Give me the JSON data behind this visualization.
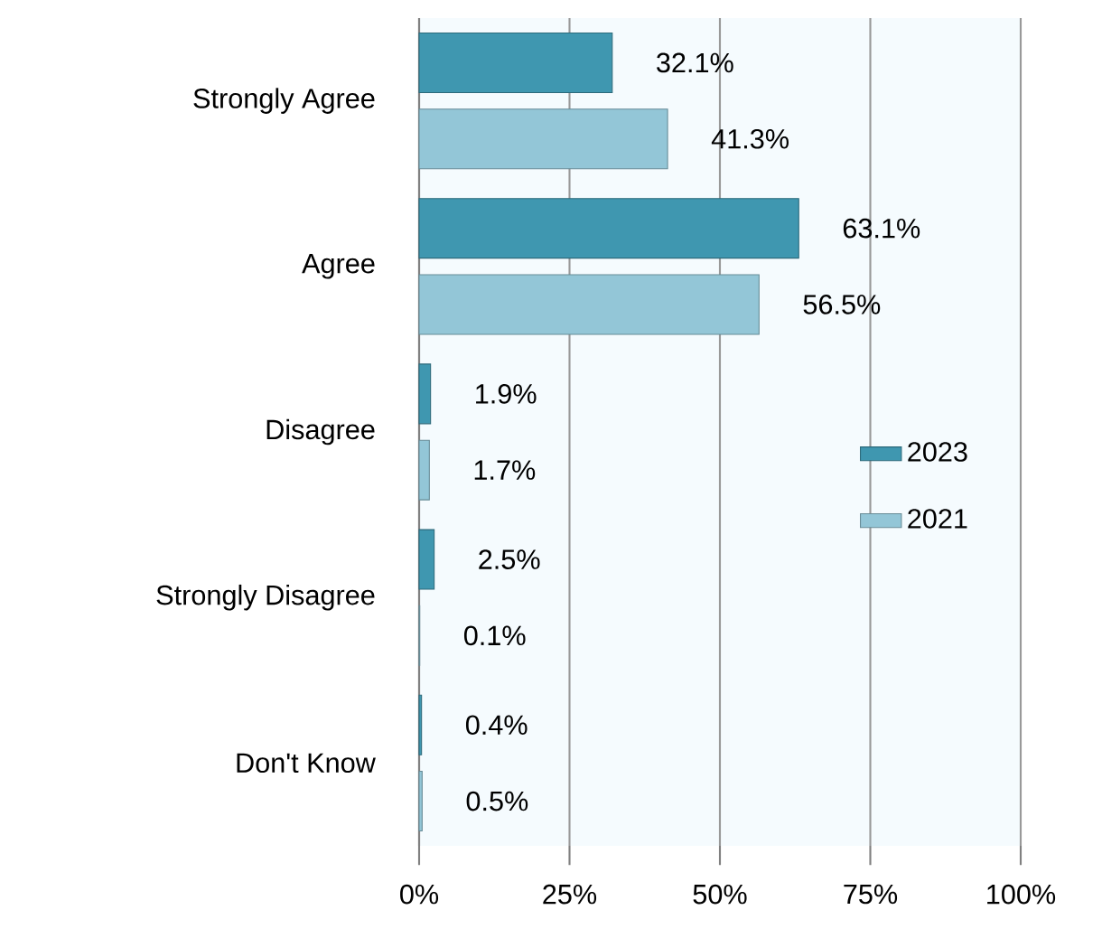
{
  "chart_data": {
    "type": "bar",
    "orientation": "horizontal",
    "categories": [
      "Strongly Agree",
      "Agree",
      "Disagree",
      "Strongly Disagree",
      "Don't Know"
    ],
    "series": [
      {
        "name": "2023",
        "color": "#3f97b0",
        "values": [
          32.1,
          63.1,
          1.9,
          2.5,
          0.4
        ],
        "value_labels": [
          "32.1%",
          "63.1%",
          "1.9%",
          "2.5%",
          "0.4%"
        ]
      },
      {
        "name": "2021",
        "color": "#93c6d7",
        "values": [
          41.3,
          56.5,
          1.7,
          0.1,
          0.5
        ],
        "value_labels": [
          "41.3%",
          "56.5%",
          "1.7%",
          "0.1%",
          "0.5%"
        ]
      }
    ],
    "xlim": [
      0,
      100
    ],
    "xticks": [
      {
        "value": 0,
        "label": "0%"
      },
      {
        "value": 25,
        "label": "25%"
      },
      {
        "value": 50,
        "label": "50%"
      },
      {
        "value": 75,
        "label": "75%"
      },
      {
        "value": 100,
        "label": "100%"
      }
    ],
    "grid": "x",
    "legend": "right"
  }
}
